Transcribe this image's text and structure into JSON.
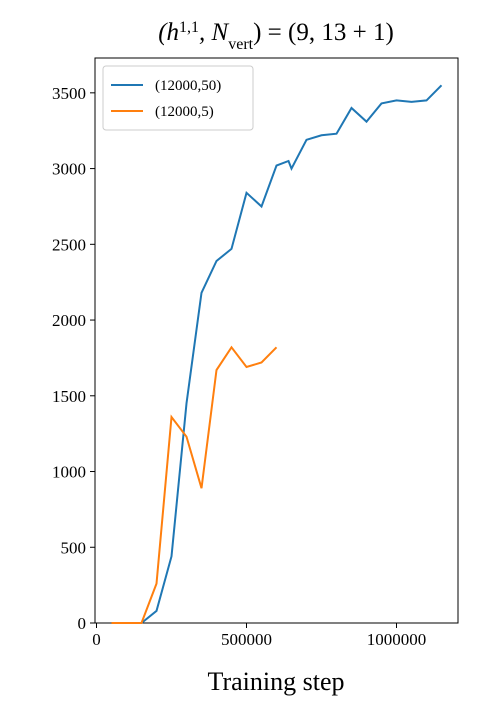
{
  "chart_data": {
    "type": "line",
    "title": [
      {
        "text": "(h"
      },
      {
        "text": "1,1",
        "sup": true
      },
      {
        "text": ", N"
      },
      {
        "text": "vert",
        "sub": true
      },
      {
        "text": ") = (9, 13 + 1)"
      }
    ],
    "x_label": "Training step",
    "x": [
      50000,
      100000,
      150000,
      200000,
      250000,
      300000,
      350000,
      400000,
      450000,
      500000,
      550000,
      600000,
      640000,
      650000,
      700000,
      750000,
      800000,
      850000,
      900000,
      950000,
      1000000,
      1050000,
      1100000,
      1150000
    ],
    "series": [
      {
        "name": "(12000,50)",
        "color": "#1f77b4",
        "values": [
          0,
          0,
          0,
          80,
          440,
          1450,
          2180,
          2390,
          2470,
          2840,
          2750,
          3020,
          3050,
          3000,
          3190,
          3220,
          3230,
          3400,
          3310,
          3430,
          3450,
          3440,
          3450,
          3550
        ]
      },
      {
        "name": "(12000,5)",
        "color": "#ff7f0e",
        "values": [
          0,
          0,
          0,
          260,
          1360,
          1230,
          890,
          1670,
          1820,
          1690,
          1720,
          1820,
          null,
          null,
          null,
          null,
          null,
          null,
          null,
          null,
          null,
          null,
          null,
          null
        ]
      }
    ],
    "xlim": [
      -5000,
      1205000
    ],
    "ylim": [
      0,
      3730
    ],
    "xticks": [
      0,
      500000,
      1000000
    ],
    "yticks": [
      0,
      500,
      1000,
      1500,
      2000,
      2500,
      3000,
      3500
    ],
    "legend": "upper left"
  }
}
